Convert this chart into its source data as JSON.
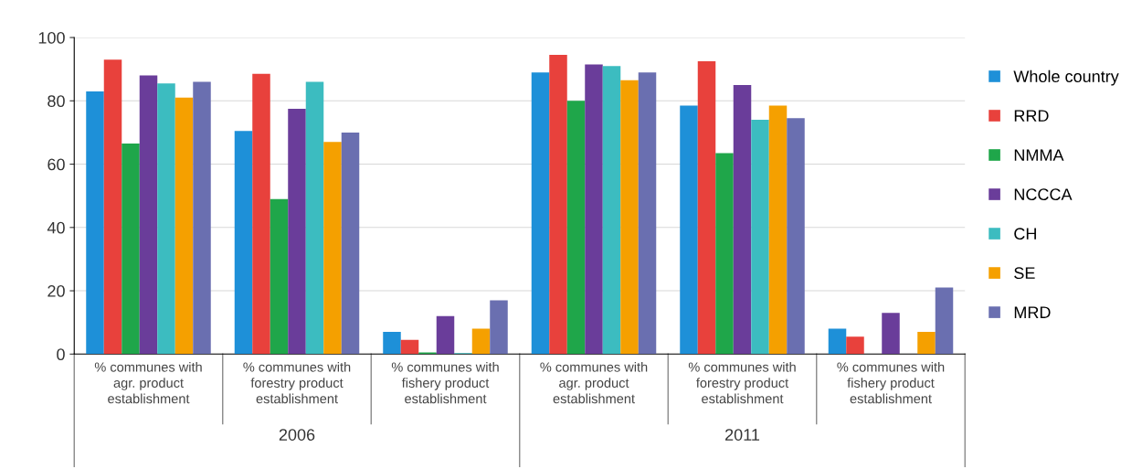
{
  "chart_data": {
    "type": "bar",
    "categories": [
      "% communes with\nagr. product\nestablishment",
      "% communes with\nforestry product\nestablishment",
      "% communes with\nfishery product\nestablishment",
      "% communes with\nagr. product\nestablishment",
      "% communes with\nforestry product\nestablishment",
      "% communes with\nfishery product\nestablishment"
    ],
    "annotations": [
      "2006",
      "2011"
    ],
    "series": [
      {
        "name": "Whole country",
        "color": "#1e90d8",
        "values": [
          83,
          70.5,
          7,
          89,
          78.5,
          8
        ]
      },
      {
        "name": "RRD",
        "color": "#e8413c",
        "values": [
          93,
          88.5,
          4.5,
          94.5,
          92.5,
          5.5
        ]
      },
      {
        "name": "NMMA",
        "color": "#1fa64a",
        "values": [
          66.5,
          49,
          0.5,
          80,
          63.5,
          0
        ]
      },
      {
        "name": "NCCCA",
        "color": "#6a3d9a",
        "values": [
          88,
          77.5,
          12,
          91.5,
          85,
          13
        ]
      },
      {
        "name": "CH",
        "color": "#3cbcc0",
        "values": [
          85.5,
          86,
          0.3,
          91,
          74,
          0
        ]
      },
      {
        "name": "SE",
        "color": "#f5a000",
        "values": [
          81,
          67,
          8,
          86.5,
          78.5,
          7
        ]
      },
      {
        "name": "MRD",
        "color": "#6a6fb0",
        "values": [
          86,
          70,
          17,
          89,
          74.5,
          21
        ]
      }
    ],
    "ylim": [
      0,
      100
    ],
    "yticks": [
      0,
      20,
      40,
      60,
      80,
      100
    ],
    "grid": "y",
    "legend": "right"
  }
}
